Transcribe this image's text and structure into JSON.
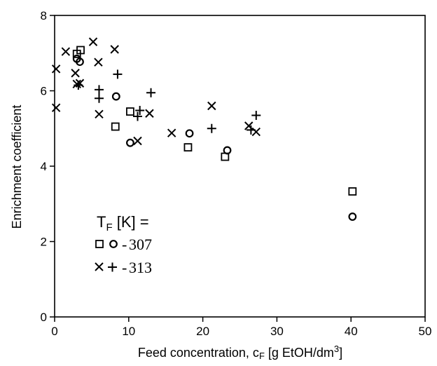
{
  "chart_data": {
    "type": "scatter",
    "xlabel": {
      "main": "Feed concentration, c",
      "sub": "F",
      "tail": " [g EtOH/dm",
      "sup": "3",
      "end": "]"
    },
    "ylabel": "Enrichment coefficient",
    "xlim": [
      0,
      50
    ],
    "ylim": [
      0,
      8
    ],
    "xticks": [
      0,
      10,
      20,
      30,
      40,
      50
    ],
    "yticks": [
      0,
      2,
      4,
      6,
      8
    ],
    "xtick_labels": [
      "0",
      "10",
      "20",
      "30",
      "40",
      "50"
    ],
    "ytick_labels": [
      "0",
      "2",
      "4",
      "6",
      "8"
    ],
    "grid": false,
    "legend": {
      "position": "bottom-left",
      "title": {
        "main": "T",
        "sub": "F",
        "tail": " [K] ="
      },
      "dash": "-",
      "entries": [
        {
          "temperature": "307",
          "markers": [
            "square",
            "circle"
          ]
        },
        {
          "temperature": "313",
          "markers": [
            "cross",
            "plus"
          ]
        }
      ]
    },
    "series": [
      {
        "marker": "square",
        "temperature": "307",
        "points": [
          [
            3.0,
            6.98
          ],
          [
            3.5,
            7.08
          ],
          [
            8.2,
            5.05
          ],
          [
            10.2,
            5.45
          ],
          [
            18.0,
            4.5
          ],
          [
            23.0,
            4.25
          ],
          [
            40.2,
            3.33
          ]
        ]
      },
      {
        "marker": "circle",
        "temperature": "307",
        "points": [
          [
            3.0,
            6.85
          ],
          [
            3.4,
            6.77
          ],
          [
            8.3,
            5.85
          ],
          [
            10.2,
            4.62
          ],
          [
            18.2,
            4.87
          ],
          [
            23.3,
            4.42
          ],
          [
            40.2,
            2.66
          ]
        ]
      },
      {
        "marker": "cross",
        "temperature": "313",
        "points": [
          [
            0.2,
            6.58
          ],
          [
            0.2,
            5.55
          ],
          [
            1.5,
            7.04
          ],
          [
            2.8,
            6.47
          ],
          [
            3.0,
            6.18
          ],
          [
            3.4,
            6.2
          ],
          [
            5.2,
            7.3
          ],
          [
            5.9,
            6.76
          ],
          [
            6.0,
            5.38
          ],
          [
            8.1,
            7.1
          ],
          [
            11.2,
            4.67
          ],
          [
            12.8,
            5.4
          ],
          [
            15.8,
            4.88
          ],
          [
            21.2,
            5.6
          ],
          [
            26.2,
            5.07
          ],
          [
            27.2,
            4.91
          ]
        ]
      },
      {
        "marker": "plus",
        "temperature": "313",
        "points": [
          [
            3.2,
            6.15
          ],
          [
            6.0,
            6.03
          ],
          [
            6.0,
            5.8
          ],
          [
            8.5,
            6.44
          ],
          [
            11.2,
            5.32
          ],
          [
            11.5,
            5.48
          ],
          [
            13.0,
            5.95
          ],
          [
            21.2,
            5.0
          ],
          [
            26.5,
            4.96
          ],
          [
            27.2,
            5.35
          ]
        ]
      }
    ]
  }
}
